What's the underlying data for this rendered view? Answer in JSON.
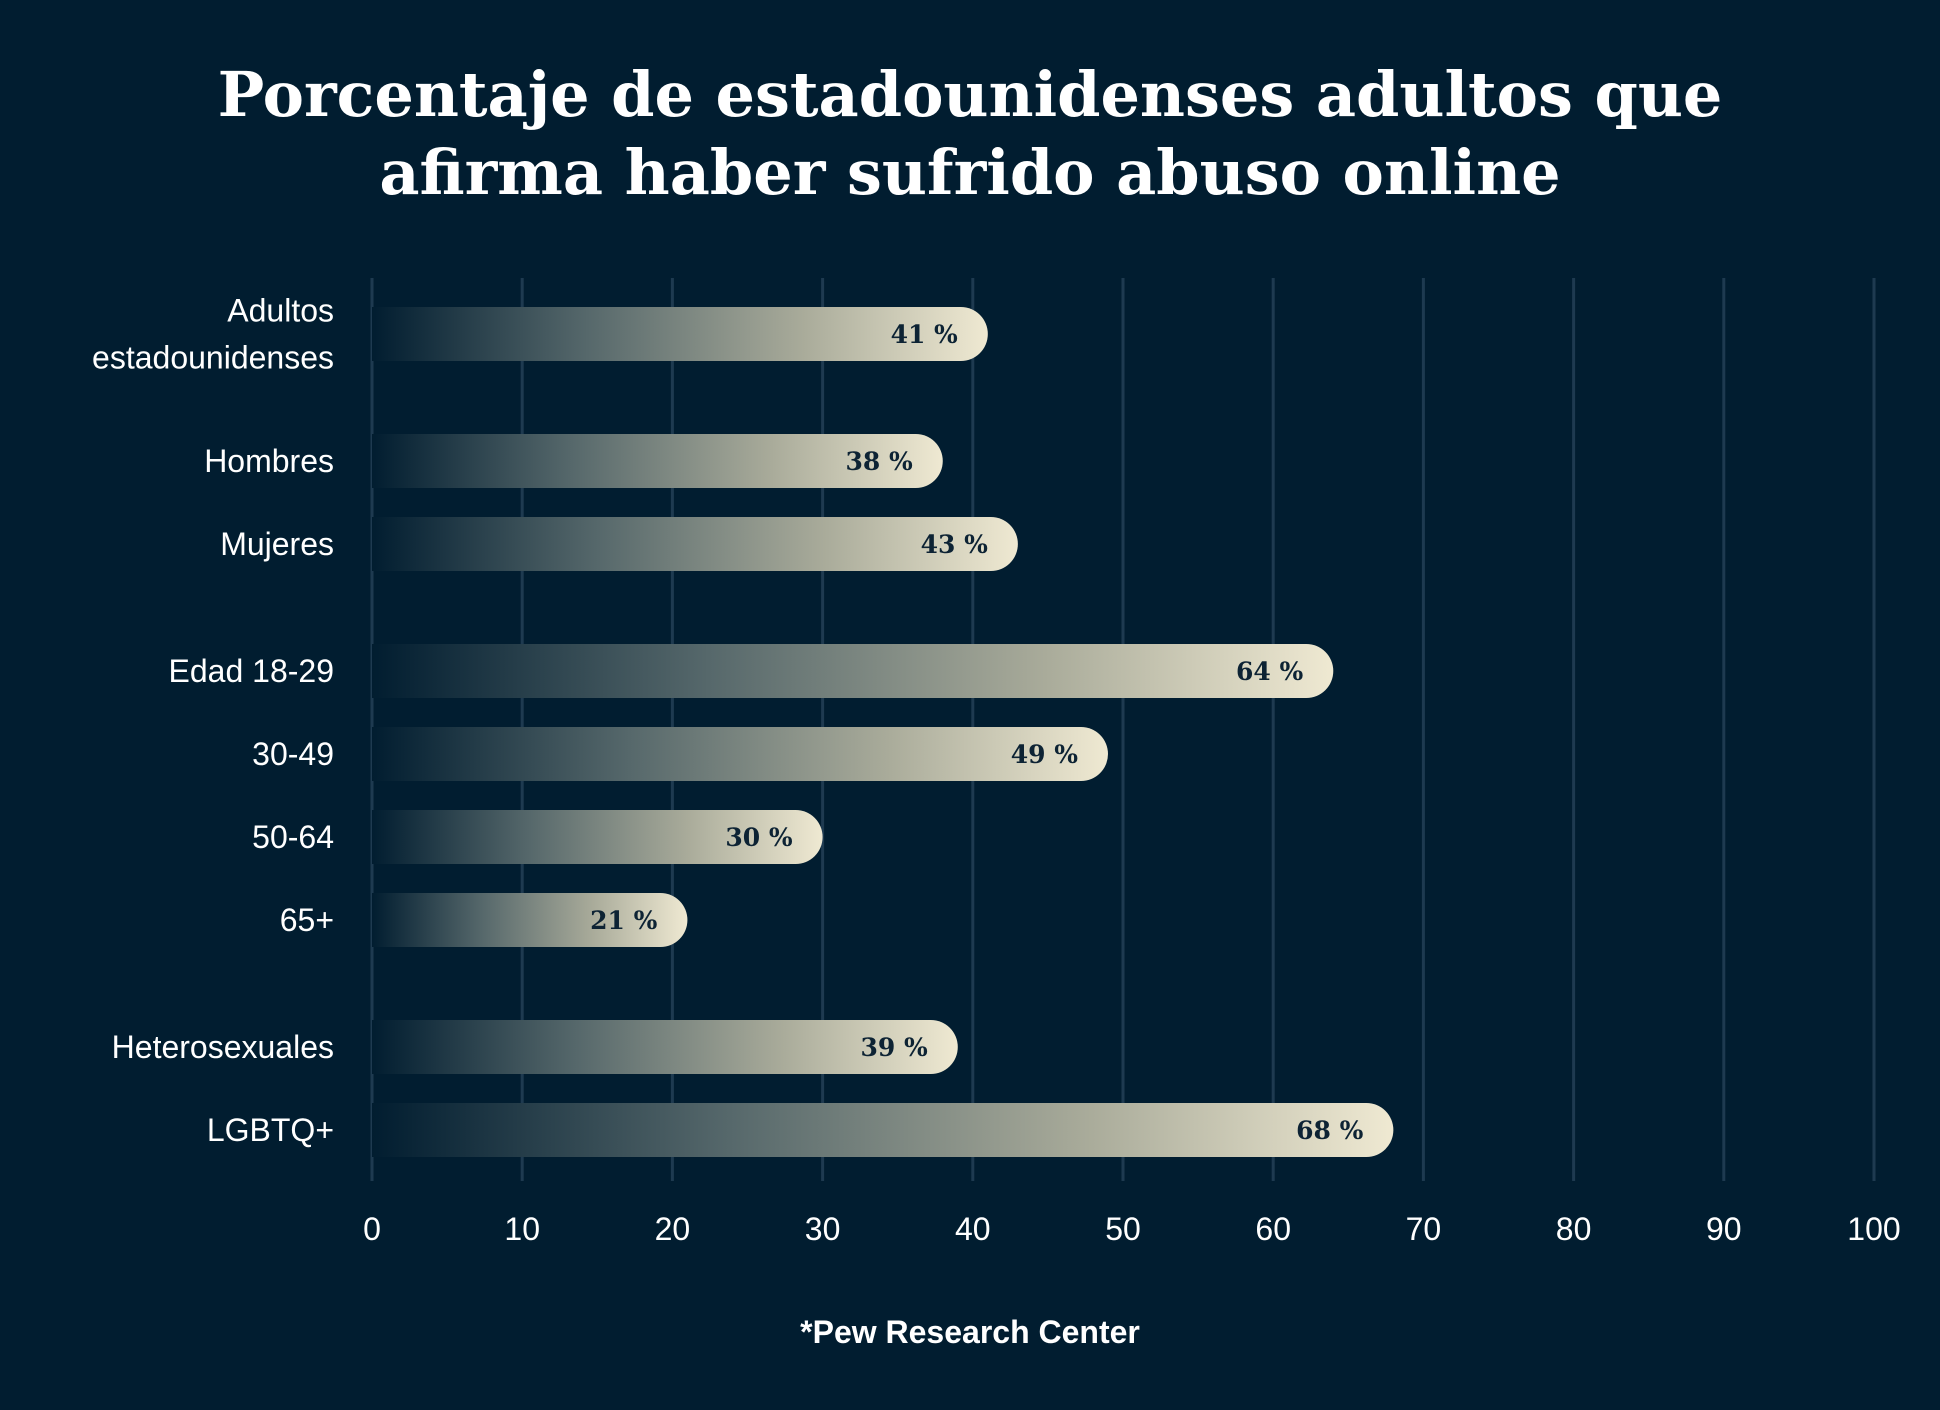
{
  "chart_data": {
    "type": "bar",
    "orientation": "horizontal",
    "title": [
      "Porcentaje de estadounidenses adultos que",
      "afirma haber sufrido abuso online"
    ],
    "categories": [
      [
        "Adultos",
        "estadounidenses"
      ],
      [
        "Hombres"
      ],
      [
        "Mujeres"
      ],
      [
        "Edad 18-29"
      ],
      [
        "30-49"
      ],
      [
        "50-64"
      ],
      [
        "65+"
      ],
      [
        "Heterosexuales"
      ],
      [
        "LGBTQ+"
      ]
    ],
    "groups": [
      [
        0
      ],
      [
        1,
        2
      ],
      [
        3,
        4,
        5,
        6
      ],
      [
        7,
        8
      ]
    ],
    "values": [
      41,
      38,
      43,
      64,
      49,
      30,
      21,
      39,
      68
    ],
    "value_labels": [
      "41 %",
      "38 %",
      "43 %",
      "64 %",
      "49 %",
      "30 %",
      "21 %",
      "39 %",
      "68 %"
    ],
    "xlim": [
      0,
      100
    ],
    "xticks": [
      "0",
      "10",
      "20",
      "30",
      "40",
      "50",
      "60",
      "70",
      "80",
      "90",
      "100"
    ],
    "grid": true,
    "source": "*Pew Research Center",
    "colors": {
      "background": "#011d30",
      "grid": "#1e3a50",
      "bar_start": "#011d30",
      "bar_end": "#efe9d2",
      "value_text": "#0d2334",
      "text": "#ffffff"
    }
  }
}
